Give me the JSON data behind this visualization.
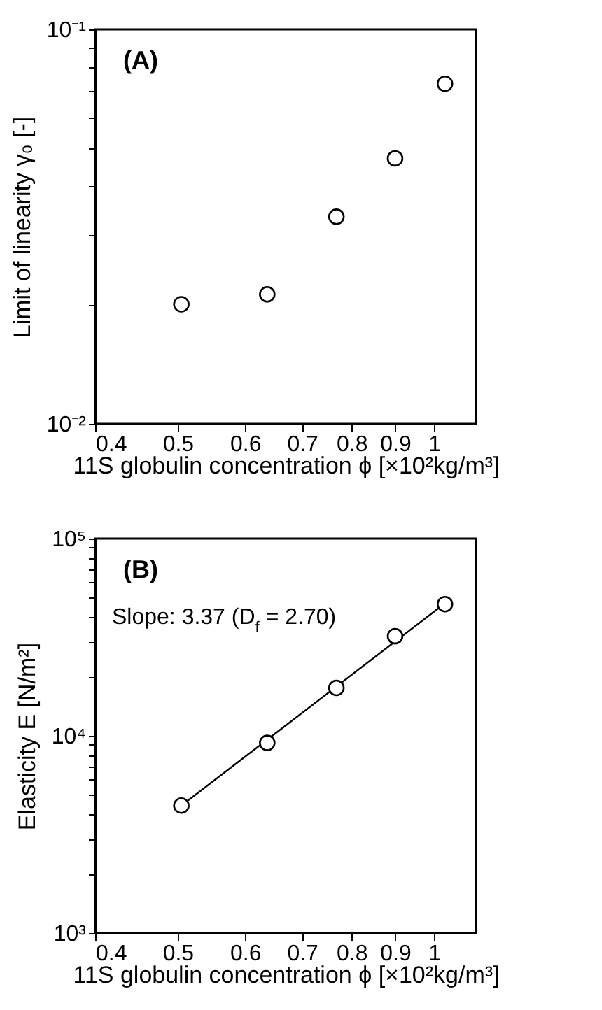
{
  "chart_data": [
    {
      "type": "scatter",
      "xlabel": "11S globulin concentration ϕ [×10²kg/m³]",
      "ylabel": "Limit of linearity γ₀ [-]",
      "annotations": [
        "(A)"
      ],
      "log": "xy",
      "marker": "circle",
      "xlim": [
        0.4,
        1.12
      ],
      "xticks": [
        0.4,
        0.5,
        0.6,
        0.7,
        0.8,
        0.9,
        1
      ],
      "ylim": [
        0.01,
        0.1
      ],
      "yticks": [
        {
          "value": 0.01,
          "label": "10⁻²"
        },
        {
          "value": 0.02,
          "label": null
        },
        {
          "value": 0.03,
          "label": null
        },
        {
          "value": 0.04,
          "label": null
        },
        {
          "value": 0.05,
          "label": null
        },
        {
          "value": 0.06,
          "label": null
        },
        {
          "value": 0.07,
          "label": null
        },
        {
          "value": 0.08,
          "label": null
        },
        {
          "value": 0.09,
          "label": null
        },
        {
          "value": 0.1,
          "label": "10⁻¹"
        }
      ],
      "x": [
        0.505,
        0.637,
        0.768,
        0.9,
        1.03
      ],
      "series": [
        {
          "color": "#000000",
          "values": [
            0.0201,
            0.0213,
            0.0335,
            0.0471,
            0.0728
          ]
        }
      ]
    },
    {
      "type": "scatter",
      "xlabel": "11S globulin concentration ϕ [×10²kg/m³]",
      "ylabel": "Elasticity E [N/m²]",
      "annotations": [
        "(B)",
        "Slope: 3.37 (D$_{f}$ = 2.70)"
      ],
      "log": "xy",
      "line_style": "solid",
      "xlim": [
        0.4,
        1.12
      ],
      "xticks": [
        0.4,
        0.5,
        0.6,
        0.7,
        0.8,
        0.9,
        1
      ],
      "ylim": [
        1000,
        100000
      ],
      "yticks": [
        {
          "value": 1000,
          "label": "10³"
        },
        {
          "value": 2000,
          "label": null
        },
        {
          "value": 3000,
          "label": null
        },
        {
          "value": 4000,
          "label": null
        },
        {
          "value": 5000,
          "label": null
        },
        {
          "value": 6000,
          "label": null
        },
        {
          "value": 7000,
          "label": null
        },
        {
          "value": 8000,
          "label": null
        },
        {
          "value": 9000,
          "label": null
        },
        {
          "value": 10000,
          "label": "10⁴"
        },
        {
          "value": 20000,
          "label": null
        },
        {
          "value": 30000,
          "label": null
        },
        {
          "value": 40000,
          "label": null
        },
        {
          "value": 50000,
          "label": null
        },
        {
          "value": 60000,
          "label": null
        },
        {
          "value": 70000,
          "label": null
        },
        {
          "value": 80000,
          "label": null
        },
        {
          "value": 90000,
          "label": null
        },
        {
          "value": 100000,
          "label": "10⁵"
        }
      ],
      "x": [
        0.505,
        0.637,
        0.768,
        0.9,
        1.03
      ],
      "series": [
        {
          "color": "#000000",
          "values": [
            4430,
            9210,
            17500,
            32000,
            46500
          ]
        },
        {
          "type": "line",
          "color": "#000000",
          "x": [
            0.505,
            1.03
          ],
          "values": [
            4430,
            47000
          ]
        }
      ]
    }
  ]
}
